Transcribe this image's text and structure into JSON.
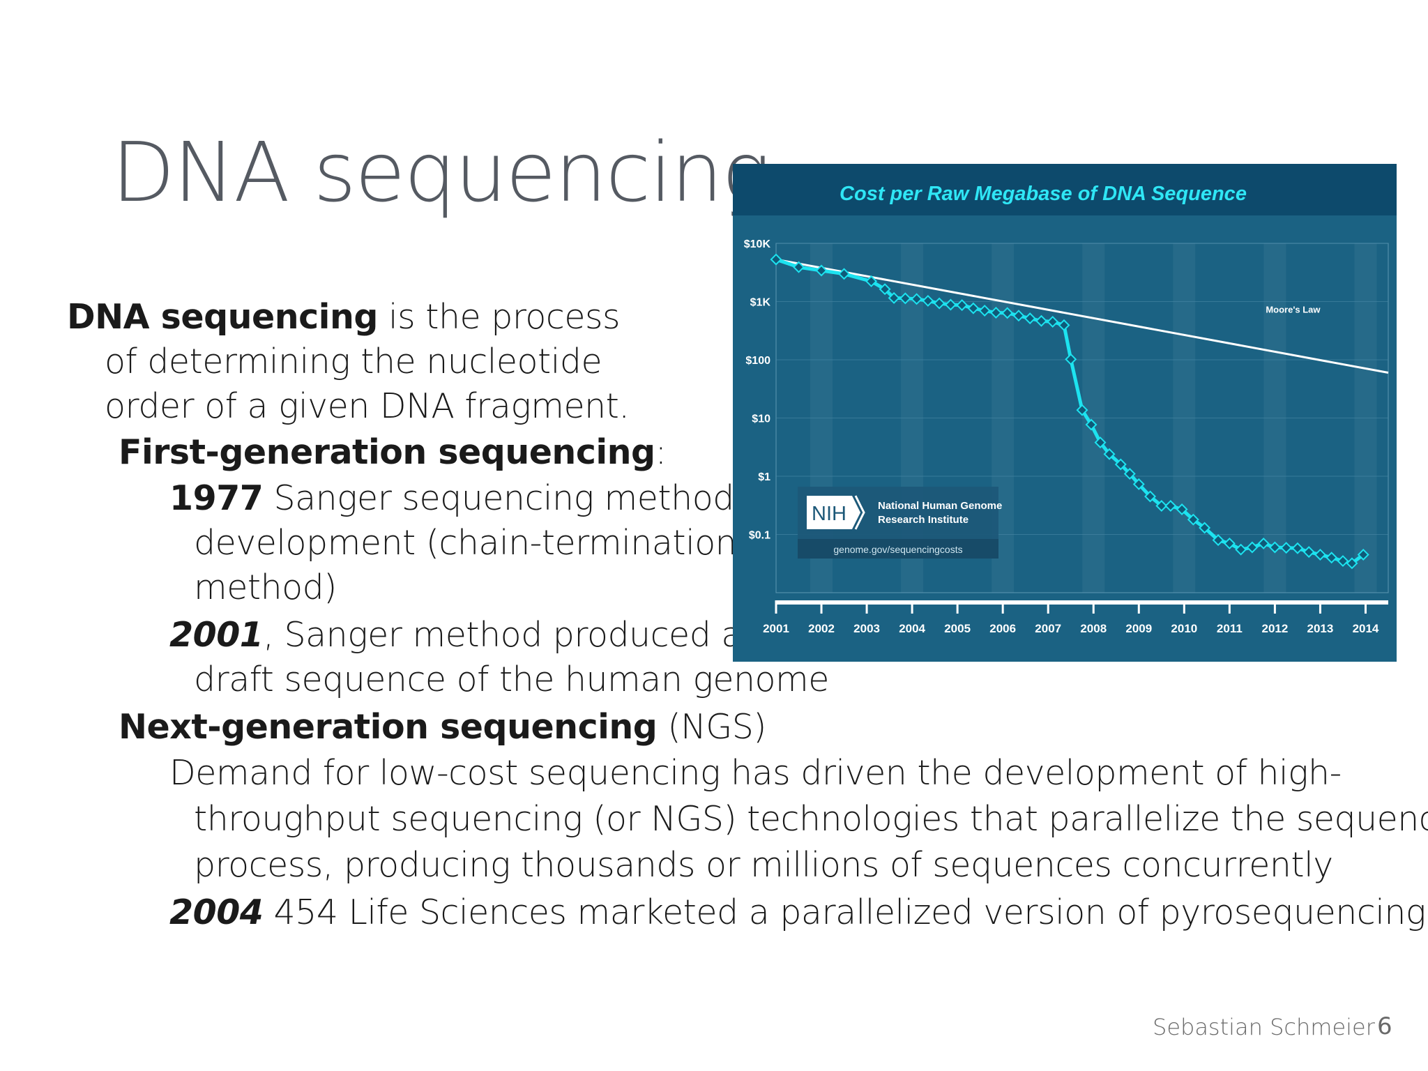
{
  "slide": {
    "title": "DNA sequencing",
    "p1_bold": "DNA sequencing",
    "p1_rest": " is the process",
    "p1_line2": "of determining the nucleotide",
    "p1_line3": "order of a given DNA fragment.",
    "first_gen_bold": "First-generation sequencing",
    "first_gen_colon": ":",
    "y1977": "1977",
    "y1977_text": " Sanger sequencing method",
    "y1977_line2": "development (chain-termination",
    "y1977_line3": "method)",
    "y2001": "2001",
    "y2001_text": ", Sanger method produced a",
    "y2001_line2": "draft sequence of the human genome",
    "ngs_bold": "Next-generation sequencing",
    "ngs_rest": " (NGS)",
    "demand_line1": "Demand for low-cost sequencing has driven the development of high-",
    "demand_line2": "throughput sequencing (or NGS) technologies that parallelize the sequencing",
    "demand_line3": "process, producing thousands or millions of sequences concurrently",
    "y2004": "2004",
    "y2004_text": " 454 Life Sciences marketed a parallelized version of pyrosequencing"
  },
  "footer": {
    "author": "Sebastian Schmeier",
    "page": "6"
  },
  "chart_data": {
    "type": "line",
    "title": "Cost per Raw Megabase of DNA Sequence",
    "log_scale": true,
    "y_ticks": [
      "$10K",
      "$1K",
      "$100",
      "$10",
      "$1",
      "$0.1"
    ],
    "y_tick_values": [
      10000,
      1000,
      100,
      10,
      1,
      0.1
    ],
    "x_ticks": [
      "2001",
      "2002",
      "2003",
      "2004",
      "2005",
      "2006",
      "2007",
      "2008",
      "2009",
      "2010",
      "2011",
      "2012",
      "2013",
      "2014"
    ],
    "xlim": [
      2001,
      2014.5
    ],
    "ylim": [
      0.01,
      10000
    ],
    "series": [
      {
        "name": "",
        "color": "#1de3f0",
        "x": [
          2001.0,
          2001.5,
          2002.0,
          2002.5,
          2003.1,
          2003.4,
          2003.6,
          2003.85,
          2004.1,
          2004.35,
          2004.6,
          2004.85,
          2005.1,
          2005.35,
          2005.6,
          2005.85,
          2006.1,
          2006.35,
          2006.6,
          2006.85,
          2007.1,
          2007.35,
          2007.5,
          2007.75,
          2007.95,
          2008.15,
          2008.35,
          2008.6,
          2008.8,
          2009.0,
          2009.25,
          2009.5,
          2009.7,
          2009.95,
          2010.2,
          2010.45,
          2010.75,
          2011.0,
          2011.25,
          2011.5,
          2011.75,
          2012.0,
          2012.25,
          2012.5,
          2012.75,
          2013.0,
          2013.25,
          2013.5,
          2013.7,
          2013.95
        ],
        "y": [
          5292,
          3898,
          3413,
          2987,
          2230,
          1634,
          1152,
          1135,
          1107,
          1030,
          932,
          884,
          869,
          767,
          698,
          644,
          637,
          573,
          514,
          465,
          450,
          393,
          102,
          13.7,
          7.7,
          3.8,
          2.4,
          1.6,
          1.1,
          0.73,
          0.45,
          0.31,
          0.31,
          0.27,
          0.18,
          0.13,
          0.08,
          0.07,
          0.055,
          0.06,
          0.07,
          0.06,
          0.059,
          0.058,
          0.05,
          0.045,
          0.04,
          0.035,
          0.032,
          0.045
        ]
      },
      {
        "name": "Moore's Law",
        "color": "#ffffff",
        "x": [
          2001,
          2014.5
        ],
        "y": [
          5292,
          60
        ]
      }
    ],
    "annotations": [
      "Moore's Law"
    ],
    "logo": {
      "abbr": "NIH",
      "org_line1": "National Human Genome",
      "org_line2": "Research Institute",
      "url": "genome.gov/sequencingcosts"
    }
  }
}
